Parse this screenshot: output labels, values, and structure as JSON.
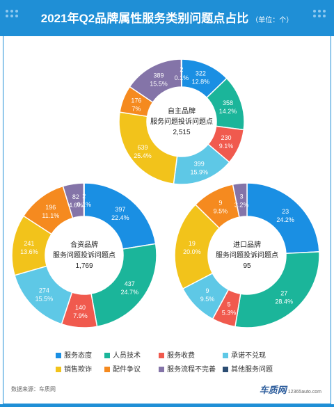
{
  "header": {
    "title": "2021年Q2品牌属性服务类别问题点占比",
    "unit": "（单位：个）"
  },
  "colors": {
    "header_bg": "#1f8fd6",
    "服务态度": "#1a8fe3",
    "人员技术": "#1bb59a",
    "服务收费": "#f05a4e",
    "承诺不兑现": "#5ec8e6",
    "销售欺诈": "#f2c31b",
    "配件争议": "#f58a1f",
    "服务流程不完善": "#8474a8",
    "其他服务问题": "#2c4d73"
  },
  "legend": {
    "items": [
      "服务态度",
      "人员技术",
      "服务收费",
      "承诺不兑现",
      "销售欺诈",
      "配件争议",
      "服务流程不完善",
      "其他服务问题"
    ]
  },
  "chart_data": [
    {
      "type": "pie",
      "subtype": "donut",
      "center_label": [
        "自主品牌",
        "服务问题投诉问题点"
      ],
      "total": "2,515",
      "categories": [
        "服务态度",
        "人员技术",
        "服务收费",
        "承诺不兑现",
        "销售欺诈",
        "配件争议",
        "服务流程不完善",
        "其他服务问题"
      ],
      "values": [
        322,
        358,
        230,
        399,
        639,
        176,
        389,
        2
      ],
      "percent_labels": [
        "12.8%",
        "14.2%",
        "9.1%",
        "15.9%",
        "25.4%",
        "7%",
        "15.5%",
        "0.1%"
      ]
    },
    {
      "type": "pie",
      "subtype": "donut",
      "center_label": [
        "合资品牌",
        "服务问题投诉问题点"
      ],
      "total": "1,769",
      "categories": [
        "服务态度",
        "人员技术",
        "服务收费",
        "承诺不兑现",
        "销售欺诈",
        "配件争议",
        "服务流程不完善",
        "其他服务问题"
      ],
      "values": [
        397,
        437,
        140,
        274,
        241,
        196,
        82,
        2
      ],
      "percent_labels": [
        "22.4%",
        "24.7%",
        "7.9%",
        "15.5%",
        "13.6%",
        "11.1%",
        "4.6%",
        "0.1%"
      ]
    },
    {
      "type": "pie",
      "subtype": "donut",
      "center_label": [
        "进口品牌",
        "服务问题投诉问题点"
      ],
      "total": "95",
      "categories": [
        "服务态度",
        "人员技术",
        "服务收费",
        "承诺不兑现",
        "销售欺诈",
        "配件争议",
        "服务流程不完善",
        "其他服务问题"
      ],
      "values": [
        23,
        27,
        5,
        9,
        19,
        9,
        3,
        0
      ],
      "percent_labels": [
        "24.2%",
        "28.4%",
        "5.3%",
        "9.5%",
        "20.0%",
        "9.5%",
        "3.2%",
        ""
      ]
    }
  ],
  "footer": {
    "source": "数据来源：车质网",
    "brand": "车质网",
    "url": "12365auto.com"
  }
}
